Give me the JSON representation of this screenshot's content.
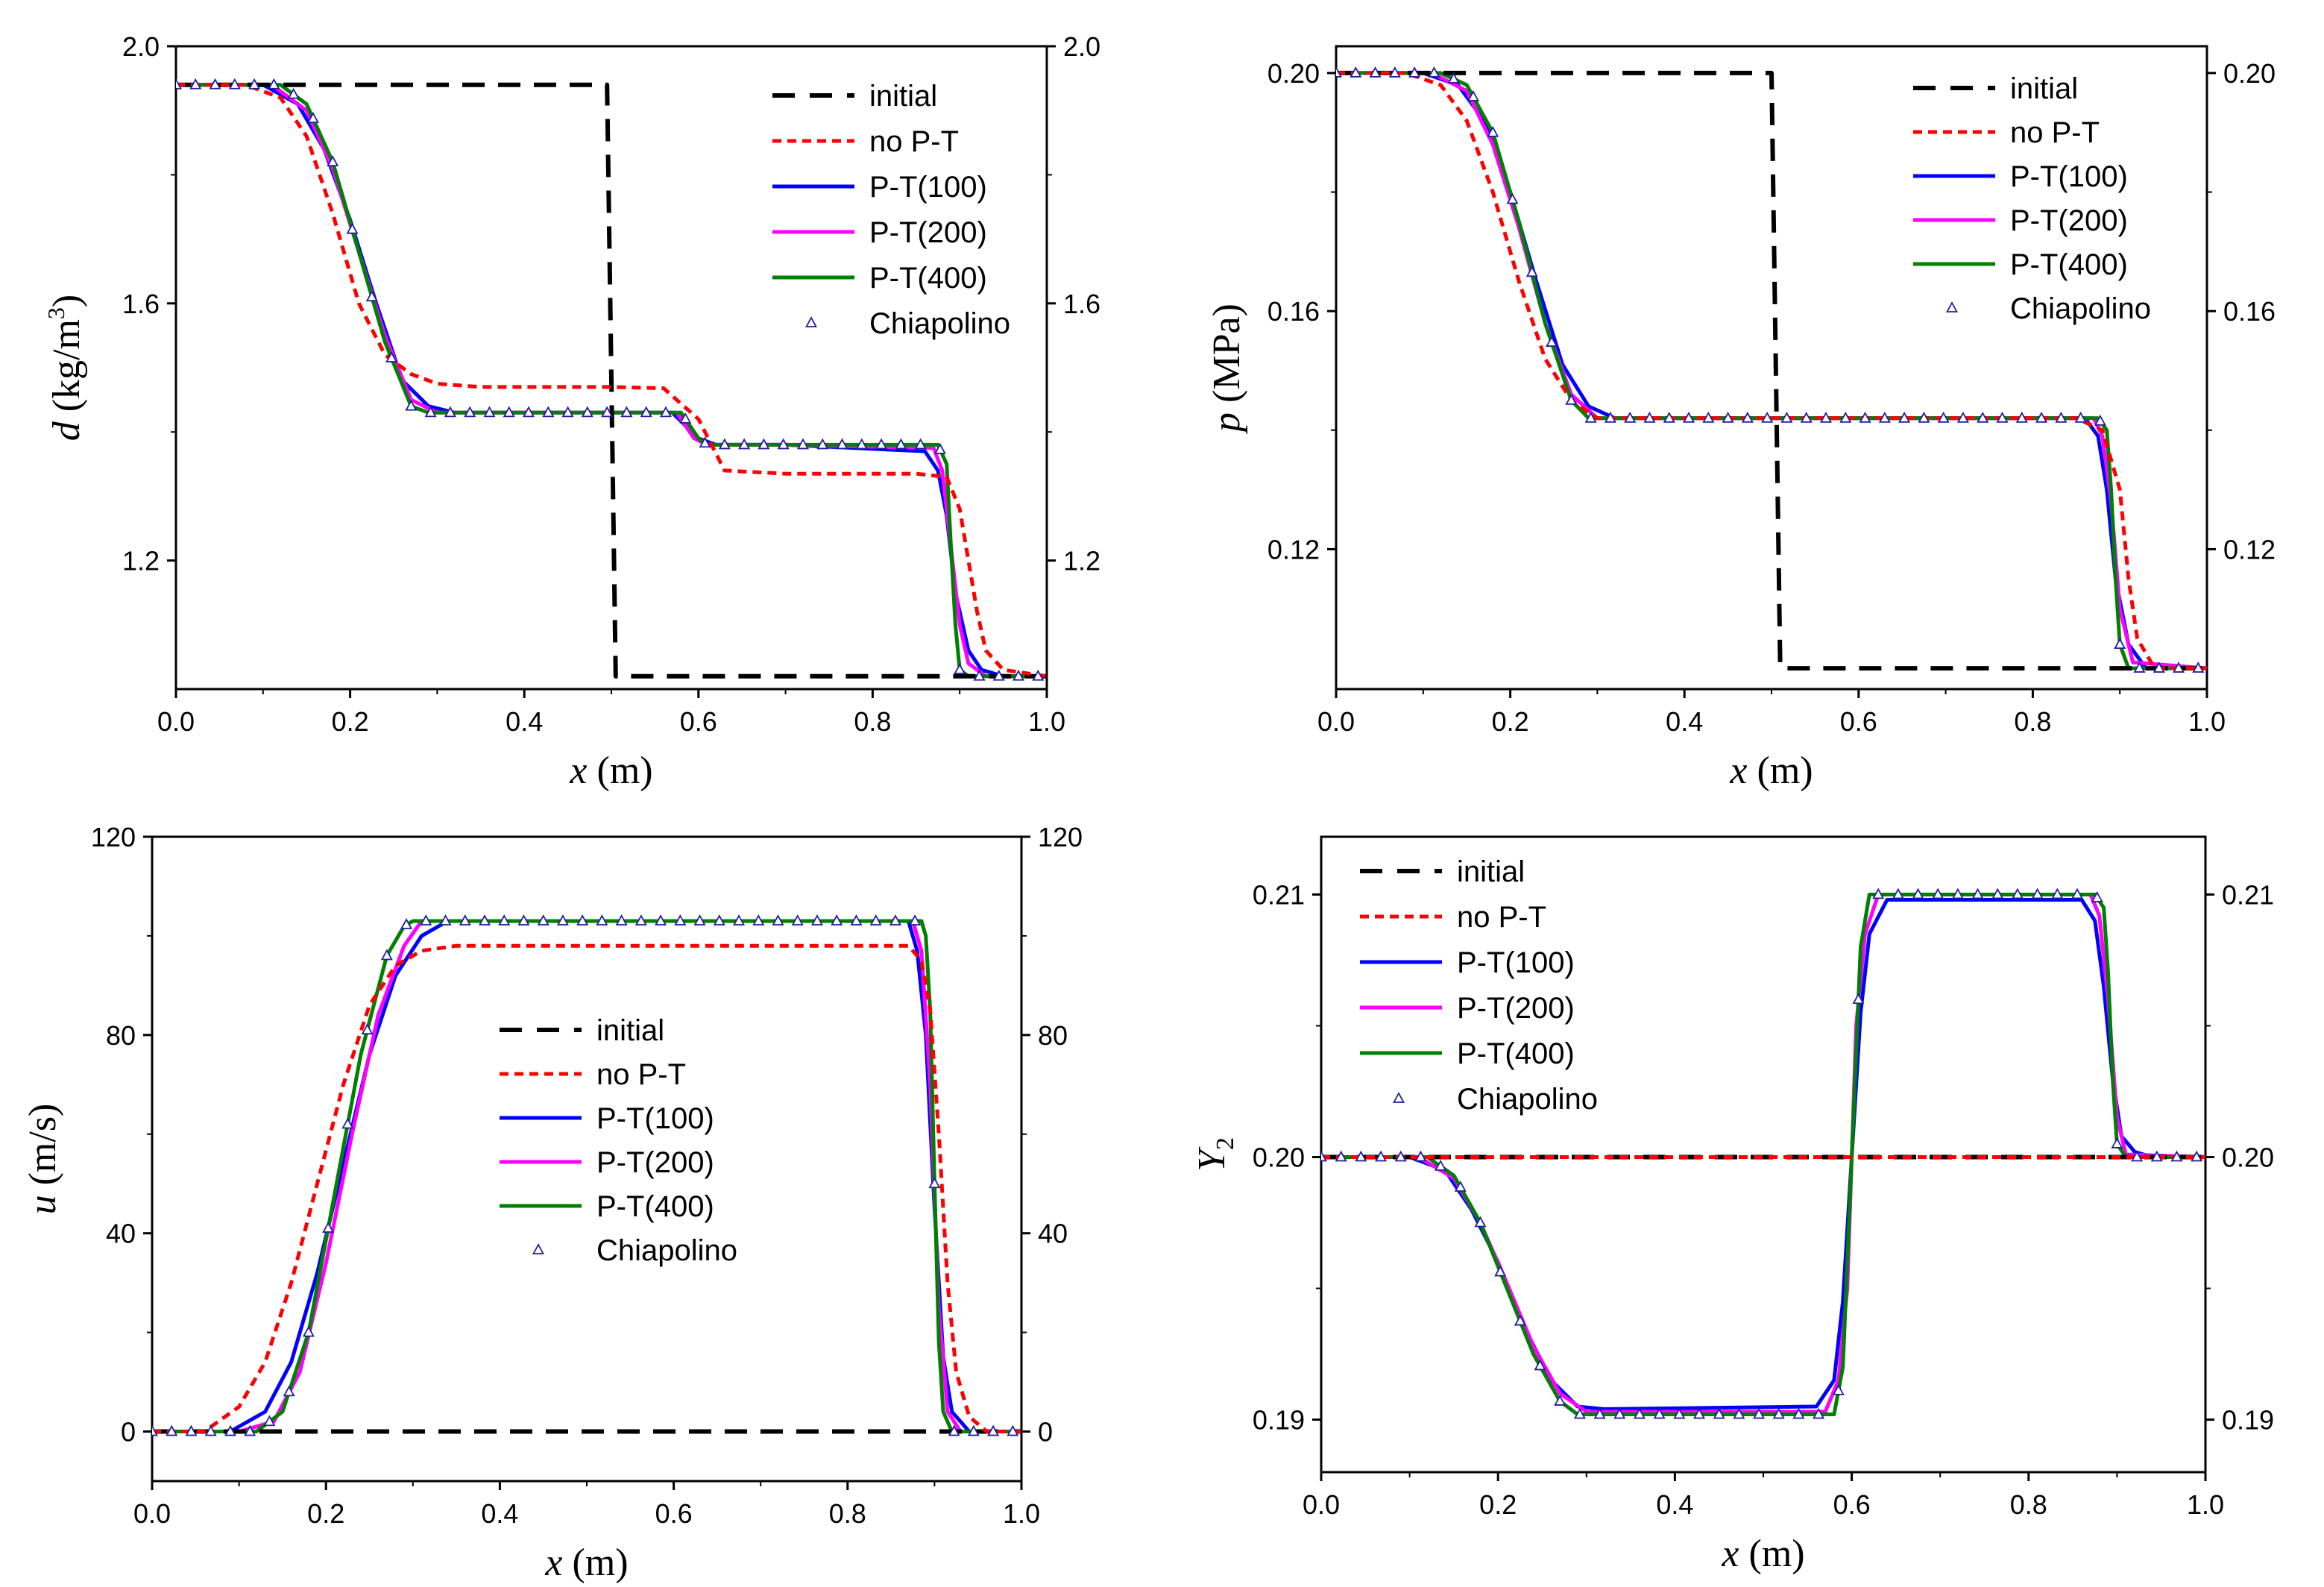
{
  "figure": {
    "legend_labels": [
      "initial",
      "no P-T",
      "P-T(100)",
      "P-T(200)",
      "P-T(400)",
      "Chiapolino"
    ],
    "series_colors": {
      "initial": "#000000",
      "no P-T": "#ff0000",
      "P-T(100)": "#0000ff",
      "P-T(200)": "#ff00ff",
      "P-T(400)": "#008000",
      "Chiapolino": "#1f1f9f"
    }
  },
  "chart_data": [
    {
      "id": "density",
      "type": "line",
      "xlabel": "x (m)",
      "ylabel_var": "d",
      "ylabel_unit": " (kg/m",
      "ylabel_sup": "3",
      "ylabel_close": ")",
      "xlim": [
        0.0,
        1.0
      ],
      "ylim": [
        1.0,
        2.0
      ],
      "xticks": [
        0.0,
        0.2,
        0.4,
        0.6,
        0.8,
        1.0
      ],
      "xtick_labels": [
        "0.0",
        "0.2",
        "0.4",
        "0.6",
        "0.8",
        "1.0"
      ],
      "yticks": [
        1.2,
        1.6,
        2.0
      ],
      "ytick_labels": [
        "1.2",
        "1.6",
        "2.0"
      ],
      "legend_position": "top-right",
      "series": [
        {
          "name": "initial",
          "x": [
            0.0,
            0.495,
            0.505,
            1.0
          ],
          "y": [
            1.94,
            1.94,
            1.02,
            1.02
          ]
        },
        {
          "name": "no P-T",
          "x": [
            0.0,
            0.08,
            0.12,
            0.15,
            0.18,
            0.21,
            0.24,
            0.27,
            0.3,
            0.35,
            0.5,
            0.56,
            0.6,
            0.63,
            0.7,
            0.85,
            0.885,
            0.9,
            0.91,
            0.92,
            0.93,
            0.95,
            1.0
          ],
          "y": [
            1.94,
            1.94,
            1.92,
            1.86,
            1.74,
            1.6,
            1.52,
            1.49,
            1.475,
            1.47,
            1.47,
            1.468,
            1.42,
            1.34,
            1.335,
            1.335,
            1.33,
            1.28,
            1.2,
            1.12,
            1.06,
            1.03,
            1.02
          ]
        },
        {
          "name": "P-T(100)",
          "x": [
            0.0,
            0.1,
            0.14,
            0.17,
            0.2,
            0.23,
            0.26,
            0.29,
            0.32,
            0.4,
            0.57,
            0.6,
            0.62,
            0.7,
            0.86,
            0.875,
            0.885,
            0.895,
            0.91,
            0.925,
            0.95,
            1.0
          ],
          "y": [
            1.94,
            1.94,
            1.91,
            1.84,
            1.73,
            1.6,
            1.48,
            1.44,
            1.43,
            1.43,
            1.43,
            1.39,
            1.38,
            1.38,
            1.37,
            1.34,
            1.27,
            1.15,
            1.06,
            1.03,
            1.02,
            1.02
          ]
        },
        {
          "name": "P-T(200)",
          "x": [
            0.0,
            0.11,
            0.15,
            0.18,
            0.21,
            0.24,
            0.27,
            0.3,
            0.4,
            0.575,
            0.595,
            0.61,
            0.7,
            0.87,
            0.88,
            0.89,
            0.9,
            0.91,
            0.93,
            1.0
          ],
          "y": [
            1.94,
            1.94,
            1.9,
            1.81,
            1.68,
            1.55,
            1.45,
            1.43,
            1.43,
            1.43,
            1.39,
            1.38,
            1.38,
            1.375,
            1.34,
            1.22,
            1.1,
            1.04,
            1.02,
            1.02
          ]
        },
        {
          "name": "P-T(400)",
          "x": [
            0.0,
            0.12,
            0.15,
            0.18,
            0.21,
            0.24,
            0.27,
            0.29,
            0.4,
            0.58,
            0.6,
            0.61,
            0.7,
            0.875,
            0.885,
            0.89,
            0.895,
            0.9,
            0.91,
            1.0
          ],
          "y": [
            1.94,
            1.94,
            1.91,
            1.82,
            1.68,
            1.54,
            1.44,
            1.43,
            1.43,
            1.43,
            1.39,
            1.38,
            1.38,
            1.38,
            1.35,
            1.22,
            1.1,
            1.03,
            1.02,
            1.02
          ]
        }
      ]
    },
    {
      "id": "pressure",
      "type": "line",
      "xlabel": "x (m)",
      "ylabel_var": "p",
      "ylabel_unit": " (MPa)",
      "ylabel_sup": "",
      "ylabel_close": "",
      "xlim": [
        0.0,
        1.0
      ],
      "ylim": [
        0.0965,
        0.2045
      ],
      "xticks": [
        0.0,
        0.2,
        0.4,
        0.6,
        0.8,
        1.0
      ],
      "xtick_labels": [
        "0.0",
        "0.2",
        "0.4",
        "0.6",
        "0.8",
        "1.0"
      ],
      "yticks": [
        0.12,
        0.16,
        0.2
      ],
      "ytick_labels": [
        "0.12",
        "0.16",
        "0.20"
      ],
      "legend_position": "top-right",
      "series": [
        {
          "name": "initial",
          "x": [
            0.0,
            0.5,
            0.51,
            1.0
          ],
          "y": [
            0.2,
            0.2,
            0.1,
            0.1
          ]
        },
        {
          "name": "no P-T",
          "x": [
            0.0,
            0.08,
            0.12,
            0.15,
            0.18,
            0.21,
            0.24,
            0.27,
            0.3,
            0.85,
            0.88,
            0.9,
            0.91,
            0.92,
            0.94,
            1.0
          ],
          "y": [
            0.2,
            0.2,
            0.198,
            0.192,
            0.18,
            0.165,
            0.152,
            0.145,
            0.142,
            0.142,
            0.14,
            0.13,
            0.115,
            0.105,
            0.1,
            0.1
          ]
        },
        {
          "name": "P-T(100)",
          "x": [
            0.0,
            0.1,
            0.14,
            0.17,
            0.2,
            0.23,
            0.26,
            0.29,
            0.32,
            0.86,
            0.875,
            0.885,
            0.895,
            0.91,
            0.93,
            1.0
          ],
          "y": [
            0.2,
            0.2,
            0.198,
            0.192,
            0.18,
            0.165,
            0.151,
            0.144,
            0.142,
            0.142,
            0.139,
            0.13,
            0.115,
            0.104,
            0.1,
            0.1
          ]
        },
        {
          "name": "P-T(200)",
          "x": [
            0.0,
            0.11,
            0.15,
            0.18,
            0.21,
            0.24,
            0.27,
            0.3,
            0.87,
            0.88,
            0.89,
            0.9,
            0.915,
            1.0
          ],
          "y": [
            0.2,
            0.2,
            0.197,
            0.188,
            0.174,
            0.158,
            0.146,
            0.142,
            0.142,
            0.139,
            0.128,
            0.11,
            0.101,
            0.1
          ]
        },
        {
          "name": "P-T(400)",
          "x": [
            0.0,
            0.12,
            0.15,
            0.18,
            0.21,
            0.24,
            0.27,
            0.29,
            0.875,
            0.885,
            0.89,
            0.895,
            0.9,
            0.91,
            1.0
          ],
          "y": [
            0.2,
            0.2,
            0.198,
            0.19,
            0.175,
            0.158,
            0.145,
            0.142,
            0.142,
            0.14,
            0.13,
            0.115,
            0.104,
            0.1,
            0.1
          ]
        }
      ]
    },
    {
      "id": "velocity",
      "type": "line",
      "xlabel": "x (m)",
      "ylabel_var": "u",
      "ylabel_unit": " (m/s)",
      "ylabel_sup": "",
      "ylabel_close": "",
      "xlim": [
        0.0,
        1.0
      ],
      "ylim": [
        -10,
        120
      ],
      "xticks": [
        0.0,
        0.2,
        0.4,
        0.6,
        0.8,
        1.0
      ],
      "xtick_labels": [
        "0.0",
        "0.2",
        "0.4",
        "0.6",
        "0.8",
        "1.0"
      ],
      "yticks": [
        0,
        40,
        80,
        120
      ],
      "ytick_labels": [
        "0",
        "40",
        "80",
        "120"
      ],
      "legend_position": "center",
      "series": [
        {
          "name": "initial",
          "x": [
            0.0,
            1.0
          ],
          "y": [
            0,
            0
          ]
        },
        {
          "name": "no P-T",
          "x": [
            0.0,
            0.06,
            0.1,
            0.13,
            0.16,
            0.19,
            0.22,
            0.25,
            0.28,
            0.31,
            0.35,
            0.87,
            0.885,
            0.895,
            0.905,
            0.915,
            0.925,
            0.94,
            0.96,
            1.0
          ],
          "y": [
            0,
            0,
            5,
            14,
            30,
            50,
            70,
            86,
            94,
            97,
            98,
            98,
            95,
            85,
            60,
            30,
            12,
            3,
            0,
            0
          ]
        },
        {
          "name": "P-T(100)",
          "x": [
            0.0,
            0.09,
            0.13,
            0.16,
            0.19,
            0.22,
            0.25,
            0.28,
            0.31,
            0.34,
            0.87,
            0.88,
            0.89,
            0.9,
            0.91,
            0.92,
            0.94,
            1.0
          ],
          "y": [
            0,
            0,
            4,
            14,
            32,
            54,
            76,
            92,
            100,
            103,
            103,
            97,
            80,
            45,
            15,
            4,
            0,
            0
          ]
        },
        {
          "name": "P-T(200)",
          "x": [
            0.0,
            0.1,
            0.14,
            0.17,
            0.2,
            0.23,
            0.26,
            0.29,
            0.31,
            0.875,
            0.885,
            0.895,
            0.905,
            0.915,
            0.93,
            1.0
          ],
          "y": [
            0,
            0,
            2,
            12,
            34,
            60,
            84,
            98,
            103,
            103,
            97,
            70,
            25,
            4,
            0,
            0
          ]
        },
        {
          "name": "P-T(400)",
          "x": [
            0.0,
            0.12,
            0.15,
            0.18,
            0.21,
            0.24,
            0.27,
            0.29,
            0.3,
            0.885,
            0.89,
            0.895,
            0.9,
            0.905,
            0.91,
            0.92,
            1.0
          ],
          "y": [
            0,
            0,
            4,
            20,
            48,
            76,
            96,
            102,
            103,
            103,
            100,
            85,
            50,
            18,
            4,
            0,
            0
          ]
        }
      ]
    },
    {
      "id": "mass-fraction",
      "type": "line",
      "xlabel": "x (m)",
      "ylabel_var": "Y",
      "ylabel_sub": "2",
      "ylabel_unit": "",
      "ylabel_sup": "",
      "ylabel_close": "",
      "xlim": [
        0.0,
        1.0
      ],
      "ylim": [
        0.188,
        0.2122
      ],
      "xticks": [
        0.0,
        0.2,
        0.4,
        0.6,
        0.8,
        1.0
      ],
      "xtick_labels": [
        "0.0",
        "0.2",
        "0.4",
        "0.6",
        "0.8",
        "1.0"
      ],
      "yticks": [
        0.19,
        0.2,
        0.21
      ],
      "ytick_labels": [
        "0.19",
        "0.20",
        "0.21"
      ],
      "legend_position": "top-left",
      "series": [
        {
          "name": "initial",
          "x": [
            0.0,
            1.0
          ],
          "y": [
            0.2,
            0.2
          ]
        },
        {
          "name": "no P-T",
          "x": [
            0.0,
            1.0
          ],
          "y": [
            0.2,
            0.2
          ]
        },
        {
          "name": "P-T(100)",
          "x": [
            0.0,
            0.1,
            0.14,
            0.17,
            0.2,
            0.23,
            0.26,
            0.29,
            0.32,
            0.56,
            0.58,
            0.59,
            0.6,
            0.61,
            0.62,
            0.64,
            0.86,
            0.875,
            0.885,
            0.895,
            0.905,
            0.92,
            0.94,
            1.0
          ],
          "y": [
            0.2,
            0.2,
            0.1995,
            0.198,
            0.196,
            0.1935,
            0.1915,
            0.1905,
            0.1904,
            0.1905,
            0.1915,
            0.1945,
            0.2,
            0.2055,
            0.2085,
            0.2098,
            0.2098,
            0.209,
            0.2065,
            0.203,
            0.2008,
            0.2002,
            0.2,
            0.2
          ]
        },
        {
          "name": "P-T(200)",
          "x": [
            0.0,
            0.11,
            0.15,
            0.18,
            0.21,
            0.24,
            0.27,
            0.3,
            0.57,
            0.585,
            0.595,
            0.6,
            0.605,
            0.615,
            0.63,
            0.87,
            0.88,
            0.89,
            0.9,
            0.91,
            1.0
          ],
          "y": [
            0.2,
            0.2,
            0.1992,
            0.1975,
            0.1952,
            0.1928,
            0.191,
            0.1903,
            0.1903,
            0.1915,
            0.195,
            0.2,
            0.205,
            0.2085,
            0.21,
            0.21,
            0.2092,
            0.206,
            0.2015,
            0.2001,
            0.2
          ]
        },
        {
          "name": "P-T(400)",
          "x": [
            0.0,
            0.12,
            0.15,
            0.18,
            0.21,
            0.24,
            0.27,
            0.29,
            0.58,
            0.59,
            0.6,
            0.61,
            0.62,
            0.875,
            0.885,
            0.89,
            0.895,
            0.9,
            0.91,
            1.0
          ],
          "y": [
            0.2,
            0.2,
            0.1993,
            0.1975,
            0.195,
            0.1925,
            0.1907,
            0.1902,
            0.1902,
            0.192,
            0.2,
            0.208,
            0.21,
            0.21,
            0.2095,
            0.207,
            0.203,
            0.2005,
            0.2,
            0.2
          ]
        }
      ]
    }
  ]
}
